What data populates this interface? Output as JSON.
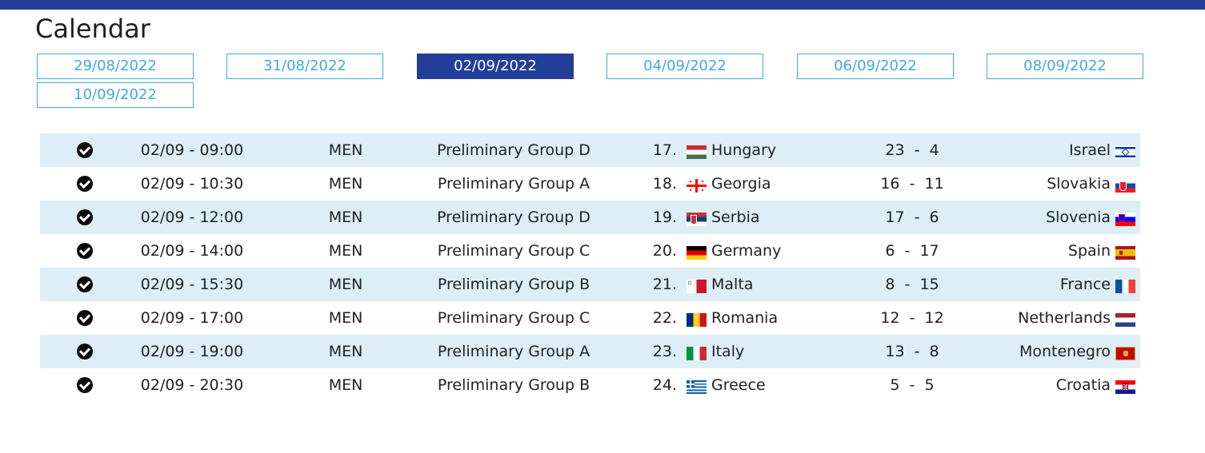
{
  "header": {
    "title": "Calendar",
    "accent_color": "#233e99"
  },
  "dates": [
    {
      "label": "29/08/2022",
      "active": false
    },
    {
      "label": "31/08/2022",
      "active": false
    },
    {
      "label": "02/09/2022",
      "active": true
    },
    {
      "label": "04/09/2022",
      "active": false
    },
    {
      "label": "06/09/2022",
      "active": false
    },
    {
      "label": "08/09/2022",
      "active": false
    },
    {
      "label": "10/09/2022",
      "active": false
    }
  ],
  "matches": [
    {
      "status_icon": "check-circle-icon",
      "time": "02/09 - 09:00",
      "gender": "MEN",
      "phase": "Preliminary Group D",
      "number": "17.",
      "home": "Hungary",
      "home_flag": "hungary-flag-icon",
      "score": "23  -  4",
      "away": "Israel",
      "away_flag": "israel-flag-icon"
    },
    {
      "status_icon": "check-circle-icon",
      "time": "02/09 - 10:30",
      "gender": "MEN",
      "phase": "Preliminary Group A",
      "number": "18.",
      "home": "Georgia",
      "home_flag": "georgia-flag-icon",
      "score": "16  -  11",
      "away": "Slovakia",
      "away_flag": "slovakia-flag-icon"
    },
    {
      "status_icon": "check-circle-icon",
      "time": "02/09 - 12:00",
      "gender": "MEN",
      "phase": "Preliminary Group D",
      "number": "19.",
      "home": "Serbia",
      "home_flag": "serbia-flag-icon",
      "score": "17  -  6",
      "away": "Slovenia",
      "away_flag": "slovenia-flag-icon"
    },
    {
      "status_icon": "check-circle-icon",
      "time": "02/09 - 14:00",
      "gender": "MEN",
      "phase": "Preliminary Group C",
      "number": "20.",
      "home": "Germany",
      "home_flag": "germany-flag-icon",
      "score": "6  -  17",
      "away": "Spain",
      "away_flag": "spain-flag-icon"
    },
    {
      "status_icon": "check-circle-icon",
      "time": "02/09 - 15:30",
      "gender": "MEN",
      "phase": "Preliminary Group B",
      "number": "21.",
      "home": "Malta",
      "home_flag": "malta-flag-icon",
      "score": "8  -  15",
      "away": "France",
      "away_flag": "france-flag-icon"
    },
    {
      "status_icon": "check-circle-icon",
      "time": "02/09 - 17:00",
      "gender": "MEN",
      "phase": "Preliminary Group C",
      "number": "22.",
      "home": "Romania",
      "home_flag": "romania-flag-icon",
      "score": "12  -  12",
      "away": "Netherlands",
      "away_flag": "netherlands-flag-icon"
    },
    {
      "status_icon": "check-circle-icon",
      "time": "02/09 - 19:00",
      "gender": "MEN",
      "phase": "Preliminary Group A",
      "number": "23.",
      "home": "Italy",
      "home_flag": "italy-flag-icon",
      "score": "13  -  8",
      "away": "Montenegro",
      "away_flag": "montenegro-flag-icon"
    },
    {
      "status_icon": "check-circle-icon",
      "time": "02/09 - 20:30",
      "gender": "MEN",
      "phase": "Preliminary Group B",
      "number": "24.",
      "home": "Greece",
      "home_flag": "greece-flag-icon",
      "score": "5  -  5",
      "away": "Croatia",
      "away_flag": "croatia-flag-icon"
    }
  ]
}
